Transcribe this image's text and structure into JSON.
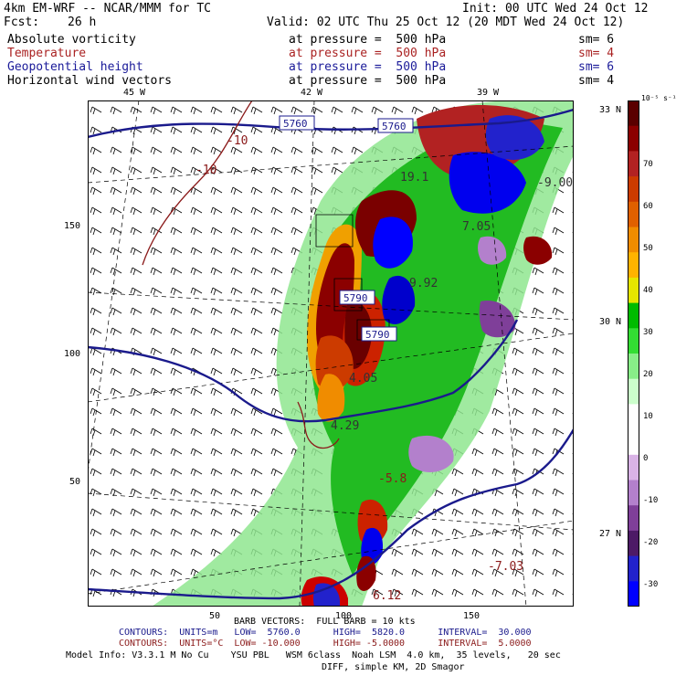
{
  "header": {
    "model": "4km EM-WRF -- NCAR/MMM for TC",
    "init": "Init: 00 UTC Wed 24 Oct 12",
    "fcst_label": "Fcst:",
    "fcst_value": "26 h",
    "valid": "Valid: 02 UTC Thu 25 Oct 12 (20 MDT Wed 24 Oct 12)"
  },
  "fields": [
    {
      "name": "Absolute vorticity",
      "level": "at pressure =  500 hPa",
      "sm": "sm= 6",
      "color": "#000000"
    },
    {
      "name": "Temperature",
      "level": "at pressure =  500 hPa",
      "sm": "sm= 4",
      "color": "#aa2222"
    },
    {
      "name": "Geopotential height",
      "level": "at pressure =  500 hPa",
      "sm": "sm= 6",
      "color": "#1a1a99"
    },
    {
      "name": "Horizontal wind vectors",
      "level": "at pressure =  500 hPa",
      "sm": "sm= 4",
      "color": "#000000"
    }
  ],
  "map": {
    "lon_labels": [
      "45 W",
      "42 W",
      "39 W"
    ],
    "lat_labels": [
      "33 N",
      "30 N",
      "27 N"
    ],
    "grid_y_labels": [
      "150",
      "100",
      "50"
    ],
    "grid_x_labels": [
      "50",
      "100",
      "150"
    ],
    "height_labels": [
      "5760",
      "5760",
      "5790",
      "5790"
    ],
    "temp_labels": [
      "-10",
      "-10"
    ],
    "vort_labels": [
      "-9.00",
      "19.1",
      "7.05",
      "9.92",
      "4.05",
      "4.29",
      "-5.8",
      "-7.03",
      "6.12"
    ],
    "colors": {
      "height": "#1a1a8c",
      "temperature": "#8b1a1a"
    }
  },
  "colorbar": {
    "units": "10⁻⁵ s⁻¹",
    "labels": [
      "70",
      "60",
      "50",
      "40",
      "30",
      "20",
      "10",
      "0",
      "-10",
      "-20",
      "-30"
    ],
    "colors": [
      "#5a0000",
      "#8b0000",
      "#b22222",
      "#cc3b00",
      "#e06000",
      "#f08c00",
      "#ffb300",
      "#e6e600",
      "#00bb00",
      "#33dd33",
      "#88ee88",
      "#ccffcc",
      "#ffffff",
      "#ffffff",
      "#d9b3e6",
      "#b380cc",
      "#7f3f99",
      "#4d1a66",
      "#2222cc",
      "#0000ff"
    ]
  },
  "footer": {
    "barb": "BARB VECTORS:  FULL BARB = 10 kts",
    "contours1": "CONTOURS:  UNITS=m   LOW=  5760.0      HIGH=  5820.0      INTERVAL=  30.000",
    "contours2": "CONTOURS:  UNITS=°C  LOW= -10.000      HIGH= -5.0000      INTERVAL=  5.0000",
    "model_info": "Model Info: V3.3.1 M No Cu    YSU PBL   WSM 6class  Noah LSM  4.0 km,  35 levels,   20 sec",
    "diff": "DIFF, simple KM, 2D Smagor"
  }
}
